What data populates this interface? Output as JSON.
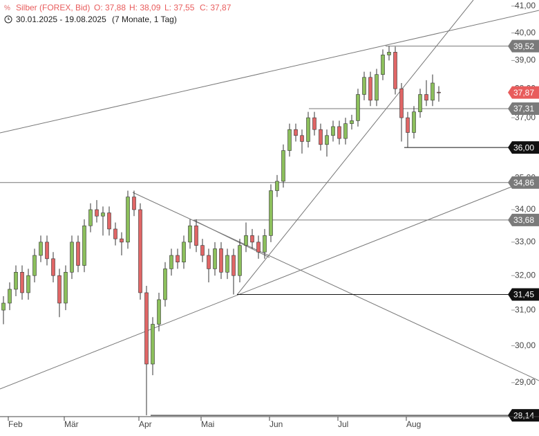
{
  "chart_data": {
    "type": "candlestick",
    "title": "Silber (FOREX, Bid)",
    "ohlc_labels": [
      "O: 37,88",
      "H: 38,09",
      "L: 37,55",
      "C: 37,87"
    ],
    "subtitle": "30.01.2025 - 19.08.2025",
    "period": "(7 Monate, 1 Tag)",
    "log_scale": true,
    "ylim": [
      28,
      41.1
    ],
    "yticks": [
      {
        "value": 29,
        "label": "29,00"
      },
      {
        "value": 30,
        "label": "30,00"
      },
      {
        "value": 31,
        "label": "31,00"
      },
      {
        "value": 32,
        "label": "32,00"
      },
      {
        "value": 33,
        "label": "33,00"
      },
      {
        "value": 34,
        "label": "34,00"
      },
      {
        "value": 35,
        "label": "35,00"
      },
      {
        "value": 36,
        "label": "36,00"
      },
      {
        "value": 37,
        "label": "37,00"
      },
      {
        "value": 38,
        "label": "38,00"
      },
      {
        "value": 39,
        "label": "39,00"
      },
      {
        "value": 40,
        "label": "40,00"
      },
      {
        "value": 41,
        "label": "41,00"
      }
    ],
    "categories": [
      null,
      "Feb",
      null,
      null,
      null,
      null,
      null,
      null,
      null,
      null,
      "Mär",
      null,
      null,
      null,
      null,
      null,
      null,
      null,
      null,
      null,
      null,
      null,
      "Apr",
      null,
      null,
      null,
      null,
      null,
      null,
      null,
      null,
      null,
      "Mai",
      null,
      null,
      null,
      null,
      null,
      null,
      null,
      null,
      null,
      null,
      "Jun",
      null,
      null,
      null,
      null,
      null,
      null,
      null,
      null,
      null,
      null,
      "Jul",
      null,
      null,
      null,
      null,
      null,
      null,
      null,
      null,
      null,
      null,
      "Aug",
      null,
      null,
      null,
      null,
      null
    ],
    "up_color": "#8cbf5c",
    "down_color": "#e06666",
    "open": [
      31.0,
      31.2,
      31.6,
      32.1,
      31.5,
      32.0,
      32.6,
      33.0,
      32.5,
      32.0,
      31.2,
      32.1,
      33.0,
      32.3,
      33.5,
      34.0,
      33.8,
      33.9,
      33.4,
      33.1,
      33.0,
      34.4,
      34.0,
      31.5,
      29.5,
      30.6,
      31.3,
      32.2,
      32.6,
      32.4,
      33.0,
      33.5,
      32.9,
      32.6,
      32.2,
      32.8,
      32.1,
      32.6,
      32.0,
      32.9,
      33.2,
      33.0,
      32.7,
      33.2,
      34.6,
      34.9,
      35.9,
      36.6,
      36.4,
      36.2,
      37.0,
      36.6,
      36.1,
      36.4,
      36.7,
      36.3,
      36.8,
      36.9,
      37.8,
      38.4,
      37.6,
      38.5,
      39.2,
      39.3,
      38.0,
      37.0,
      36.5,
      37.2,
      37.8,
      37.6,
      37.88
    ],
    "high": [
      31.4,
      31.8,
      32.3,
      32.3,
      32.2,
      32.8,
      33.2,
      33.2,
      32.7,
      32.2,
      32.3,
      33.2,
      33.2,
      33.7,
      34.2,
      34.3,
      34.1,
      34.1,
      33.6,
      33.3,
      34.6,
      34.6,
      34.2,
      31.7,
      30.8,
      31.5,
      32.4,
      32.8,
      32.8,
      33.2,
      33.7,
      33.7,
      33.1,
      32.8,
      33.0,
      33.0,
      32.8,
      32.8,
      33.1,
      33.6,
      33.4,
      33.2,
      33.4,
      34.8,
      35.1,
      36.1,
      36.8,
      36.8,
      36.6,
      37.2,
      37.2,
      36.8,
      36.6,
      36.9,
      36.9,
      37.0,
      37.1,
      38.0,
      38.6,
      38.6,
      38.7,
      39.4,
      39.52,
      39.5,
      38.2,
      37.2,
      37.4,
      38.0,
      38.3,
      38.5,
      38.09
    ],
    "low": [
      30.6,
      31.0,
      31.4,
      31.3,
      31.3,
      31.8,
      32.4,
      32.3,
      31.8,
      30.8,
      31.0,
      31.9,
      32.1,
      32.1,
      33.3,
      33.6,
      33.2,
      33.2,
      32.9,
      32.6,
      32.8,
      33.8,
      31.3,
      28.14,
      29.2,
      30.4,
      31.1,
      32.0,
      32.2,
      32.2,
      32.8,
      32.7,
      32.4,
      31.8,
      32.0,
      31.9,
      31.9,
      31.45,
      31.8,
      32.7,
      32.8,
      32.5,
      32.5,
      33.0,
      34.4,
      34.7,
      35.7,
      36.2,
      35.8,
      36.0,
      36.4,
      35.9,
      35.7,
      36.2,
      36.1,
      36.1,
      36.6,
      36.7,
      37.6,
      37.4,
      37.4,
      38.3,
      39.0,
      37.8,
      36.2,
      36.0,
      36.3,
      37.0,
      37.4,
      37.4,
      37.55
    ],
    "close": [
      31.2,
      31.6,
      32.1,
      31.5,
      32.0,
      32.6,
      33.0,
      32.5,
      32.0,
      31.2,
      32.1,
      33.0,
      32.3,
      33.5,
      34.0,
      33.8,
      33.9,
      33.4,
      33.1,
      33.0,
      34.4,
      34.0,
      31.5,
      29.5,
      30.6,
      31.3,
      32.2,
      32.6,
      32.4,
      33.0,
      33.5,
      32.9,
      32.6,
      32.2,
      32.8,
      32.1,
      32.6,
      32.0,
      32.9,
      33.2,
      33.0,
      32.7,
      33.2,
      34.6,
      34.9,
      35.9,
      36.6,
      36.4,
      36.2,
      37.0,
      36.6,
      36.1,
      36.4,
      36.7,
      36.3,
      36.8,
      36.9,
      37.8,
      38.4,
      37.6,
      38.5,
      39.2,
      39.3,
      38.0,
      37.0,
      36.5,
      37.2,
      37.8,
      37.6,
      38.2,
      37.87
    ],
    "levels": [
      {
        "value": 39.52,
        "label": "39,52",
        "color": "#7a7a7a"
      },
      {
        "value": 37.87,
        "label": "37,87",
        "color": "#e85c5c"
      },
      {
        "value": 37.31,
        "label": "37,31",
        "color": "#7a7a7a"
      },
      {
        "value": 36.0,
        "label": "36,00",
        "color": "#111111"
      },
      {
        "value": 34.86,
        "label": "34,86",
        "color": "#7a7a7a"
      },
      {
        "value": 33.68,
        "label": "33,68",
        "color": "#7a7a7a"
      },
      {
        "value": 31.45,
        "label": "31,45",
        "color": "#111111"
      },
      {
        "value": 28.14,
        "label": "28,14",
        "color": "#111111"
      }
    ]
  }
}
